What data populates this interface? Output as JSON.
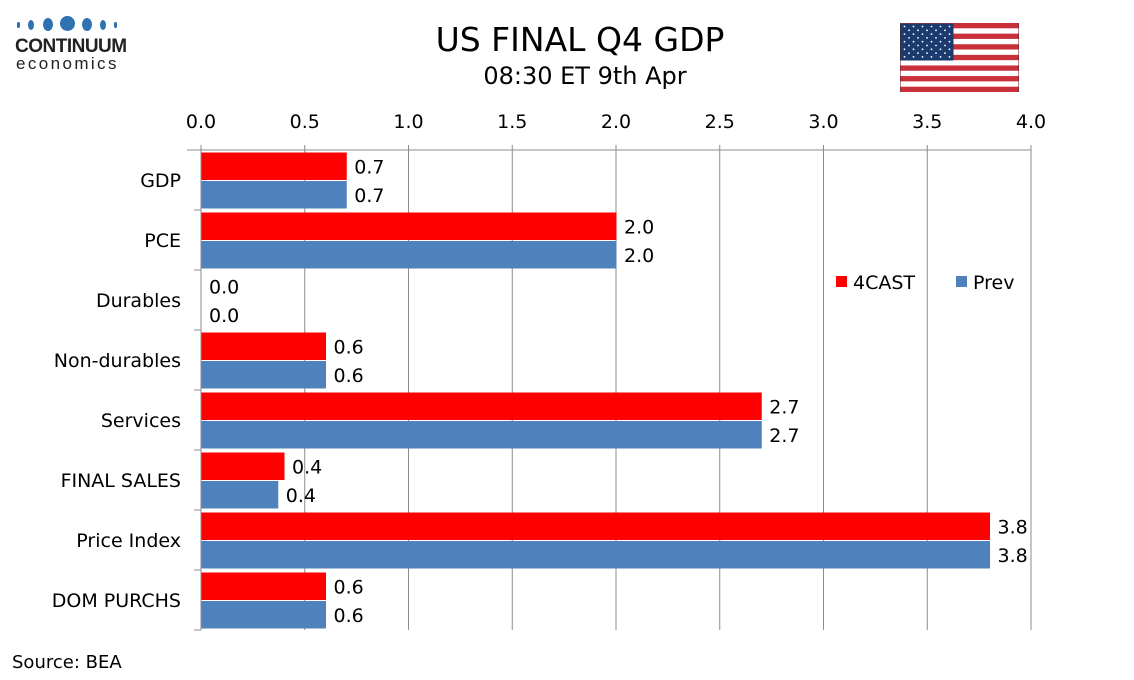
{
  "header": {
    "logo": {
      "name": "CONTINUUM",
      "sub": "economics"
    },
    "title": "US FINAL Q4 GDP",
    "subtitle": "08:30 ET 9th Apr",
    "flag": "us-flag"
  },
  "footer": {
    "source": "Source: BEA"
  },
  "colors": {
    "forecast": "#ff0000",
    "previous": "#4f81bd",
    "grid": "#8c8c8c"
  },
  "chart_data": {
    "type": "bar",
    "orientation": "horizontal",
    "title": "US FINAL Q4 GDP",
    "subtitle": "08:30 ET 9th Apr",
    "xlabel": "",
    "ylabel": "",
    "xlim": [
      0,
      4.0
    ],
    "x_ticks": [
      "0.0",
      "0.5",
      "1.0",
      "1.5",
      "2.0",
      "2.5",
      "3.0",
      "3.5",
      "4.0"
    ],
    "x_axis_position": "top",
    "grid": true,
    "legend_position": "right",
    "categories": [
      "GDP",
      "PCE",
      "Durables",
      "Non-durables",
      "Services",
      "FINAL SALES",
      "Price Index",
      "DOM PURCHS"
    ],
    "series": [
      {
        "name": "4CAST",
        "color": "#ff0000",
        "values": [
          0.7,
          2.0,
          0.0,
          0.6,
          2.7,
          0.4,
          3.8,
          0.6
        ],
        "labels": [
          "0.7",
          "2.0",
          "0.0",
          "0.6",
          "2.7",
          "0.4",
          "3.8",
          "0.6"
        ]
      },
      {
        "name": "Prev",
        "color": "#4f81bd",
        "values": [
          0.7,
          2.0,
          0.0,
          0.6,
          2.7,
          0.37,
          3.8,
          0.6
        ],
        "labels": [
          "0.7",
          "2.0",
          "0.0",
          "0.6",
          "2.7",
          "0.4",
          "3.8",
          "0.6"
        ]
      }
    ]
  }
}
